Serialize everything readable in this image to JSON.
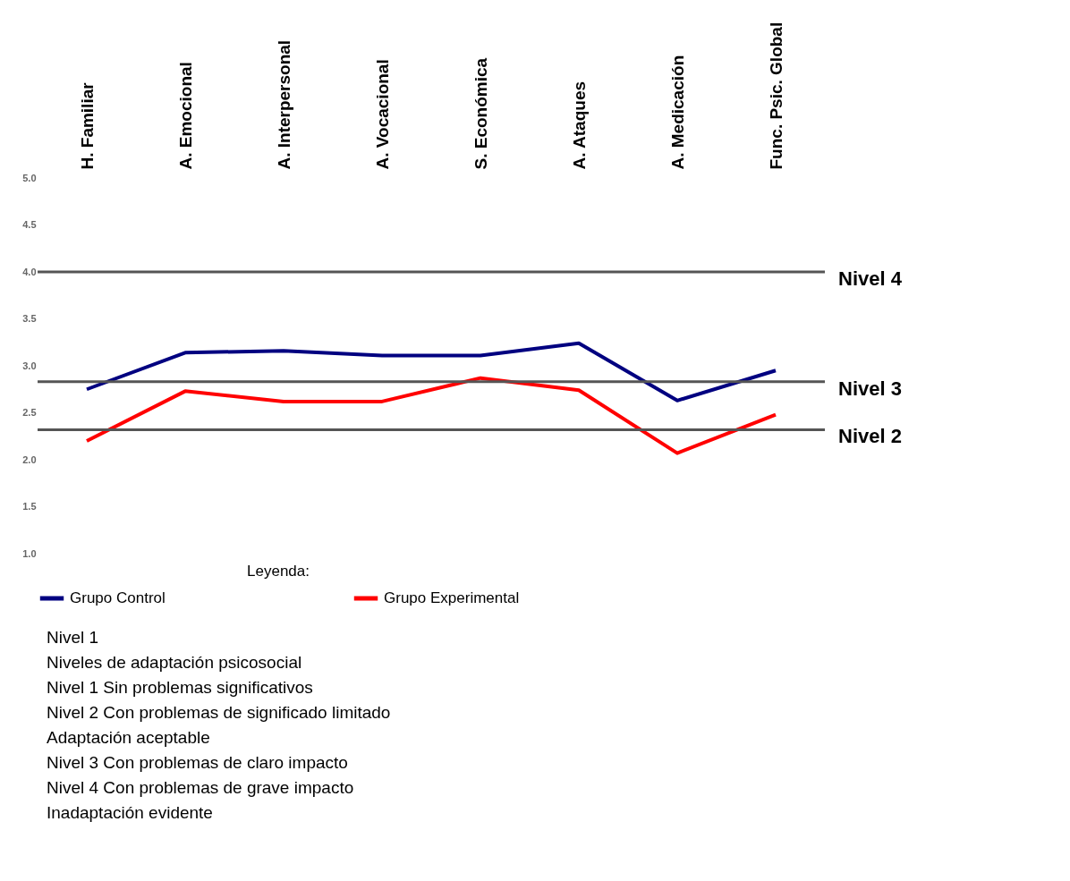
{
  "chart_data": {
    "type": "line",
    "categories": [
      "H. Familiar",
      "A. Emocional",
      "A. Interpersonal",
      "A. Vocacional",
      "S. Económica",
      "A. Ataques",
      "A. Medicación",
      "Func. Psic. Global"
    ],
    "series": [
      {
        "name": "Grupo Control",
        "color": "#000080",
        "values": [
          2.75,
          3.14,
          3.16,
          3.11,
          3.11,
          3.24,
          2.63,
          2.95
        ]
      },
      {
        "name": "Grupo Experimental",
        "color": "#ff0000",
        "values": [
          2.2,
          2.73,
          2.62,
          2.62,
          2.87,
          2.74,
          2.07,
          2.48
        ]
      }
    ],
    "ylim": [
      1,
      5
    ],
    "yticks": [
      {
        "value": 1,
        "label": "1.0"
      },
      {
        "value": 1.5,
        "label": "1.5"
      },
      {
        "value": 2,
        "label": "2.0"
      },
      {
        "value": 2.5,
        "label": "2.5"
      },
      {
        "value": 3,
        "label": "3.0"
      },
      {
        "value": 3.5,
        "label": "3.5"
      },
      {
        "value": 4,
        "label": "4.0"
      },
      {
        "value": 4.5,
        "label": "4.5"
      },
      {
        "value": 5,
        "label": "5.0"
      }
    ],
    "ref_lines": [
      {
        "axis": "y",
        "value": 4,
        "label": "Nivel 4",
        "color": "#555555"
      },
      {
        "axis": "y",
        "value": 2.83,
        "label": "Nivel 3",
        "color": "#555555"
      },
      {
        "axis": "y",
        "value": 2.32,
        "label": "Nivel 2",
        "color": "#555555"
      }
    ],
    "legend_title": "Leyenda:",
    "legend": "bottom",
    "marker": "none",
    "line_style": "solid",
    "grid": false,
    "annotations": [
      "Nivel 1",
      "Niveles de adaptación psicosocial",
      "Nivel 1      Sin problemas significativos",
      "Nivel 2      Con problemas de significado limitado",
      "Adaptación aceptable",
      "Nivel 3      Con problemas de claro impacto",
      "Nivel 4      Con problemas de grave  impacto",
      "Inadaptación evidente"
    ]
  }
}
